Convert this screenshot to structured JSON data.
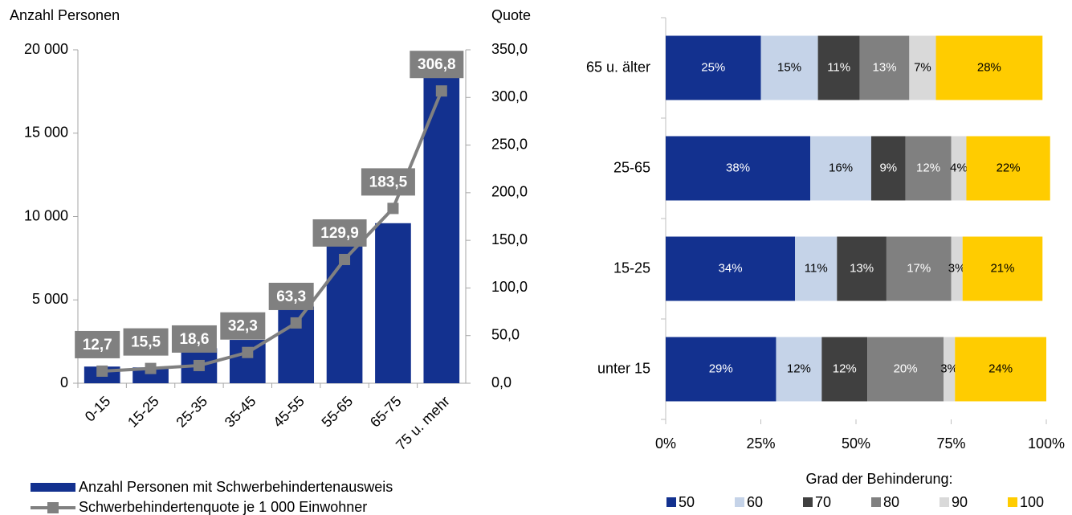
{
  "chart_data": [
    {
      "type": "bar_line",
      "ylabel": "Anzahl Personen",
      "y2label": "Quote",
      "categories": [
        "0-15",
        "15-25",
        "25-35",
        "35-45",
        "45-55",
        "55-65",
        "65-75",
        "75 u. mehr"
      ],
      "series": [
        {
          "name": "Anzahl Personen mit Schwerbehindertenausweis",
          "type": "bar",
          "color": "#13318f",
          "values": [
            1000,
            950,
            2100,
            2600,
            4600,
            8400,
            9600,
            18500
          ]
        },
        {
          "name": "Schwerbehindertenquote je 1 000 Einwohner",
          "type": "line",
          "axis": "y2",
          "color": "#808080",
          "values": [
            12.7,
            15.5,
            18.6,
            32.3,
            63.3,
            129.9,
            183.5,
            306.8
          ],
          "value_labels": [
            "12,7",
            "15,5",
            "18,6",
            "32,3",
            "63,3",
            "129,9",
            "183,5",
            "306,8"
          ]
        }
      ],
      "ylim": [
        0,
        20000
      ],
      "yticks": [
        0,
        {
          "value": 5000,
          "label": "5 000"
        },
        {
          "value": 10000,
          "label": "10 000"
        },
        {
          "value": 15000,
          "label": "15 000"
        },
        {
          "value": 20000,
          "label": "20 000"
        }
      ],
      "y2lim": [
        0,
        350
      ],
      "y2ticks": [
        {
          "value": 0,
          "label": "0,0"
        },
        {
          "value": 50,
          "label": "50,0"
        },
        {
          "value": 100,
          "label": "100,0"
        },
        {
          "value": 150,
          "label": "150,0"
        },
        {
          "value": 200,
          "label": "200,0"
        },
        {
          "value": 250,
          "label": "250,0"
        },
        {
          "value": 300,
          "label": "300,0"
        },
        {
          "value": 350,
          "label": "350,0"
        }
      ],
      "legend": "bottom-left"
    },
    {
      "type": "stacked_barh",
      "legend_title": "Grad der Behinderung:",
      "categories": [
        "65 u. älter",
        "25-65",
        "15-25",
        "unter 15"
      ],
      "series": [
        {
          "name": "50",
          "color": "#13318f",
          "values": [
            25,
            38,
            34,
            29
          ],
          "value_labels": [
            "25%",
            "38%",
            "34%",
            "29%"
          ]
        },
        {
          "name": "60",
          "color": "#c5d3e8",
          "values": [
            15,
            16,
            11,
            12
          ],
          "value_labels": [
            "15%",
            "16%",
            "11%",
            "12%"
          ]
        },
        {
          "name": "70",
          "color": "#404040",
          "values": [
            11,
            9,
            13,
            12
          ],
          "value_labels": [
            "11%",
            "9%",
            "13%",
            "12%"
          ]
        },
        {
          "name": "80",
          "color": "#808080",
          "values": [
            13,
            12,
            17,
            20
          ],
          "value_labels": [
            "13%",
            "12%",
            "17%",
            "20%"
          ]
        },
        {
          "name": "90",
          "color": "#d9d9d9",
          "values": [
            7,
            4,
            3,
            3
          ],
          "value_labels": [
            "7%",
            "4%",
            "3%",
            "3%"
          ]
        },
        {
          "name": "100",
          "color": "#ffcc00",
          "values": [
            28,
            22,
            21,
            24
          ],
          "value_labels": [
            "28%",
            "22%",
            "21%",
            "24%"
          ]
        }
      ],
      "xlim": [
        0,
        100
      ],
      "xticks": [
        {
          "value": 0,
          "label": "0%"
        },
        {
          "value": 25,
          "label": "25%"
        },
        {
          "value": 50,
          "label": "50%"
        },
        {
          "value": 75,
          "label": "75%"
        },
        {
          "value": 100,
          "label": "100%"
        }
      ],
      "legend": "bottom"
    }
  ]
}
